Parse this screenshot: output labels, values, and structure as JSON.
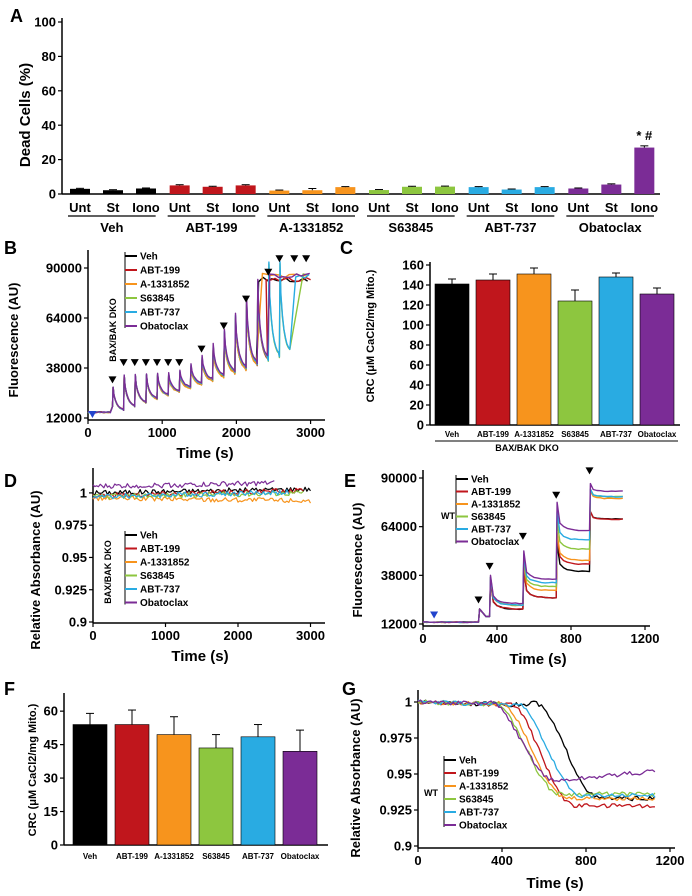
{
  "colors": {
    "veh": "#000000",
    "abt199": "#c0161c",
    "a1331852": "#f7941d",
    "s63845": "#8dc63f",
    "abt737": "#29abe2",
    "obatoclax": "#7b2c96",
    "naveh": "#000000",
    "naabt199": "#8b0000"
  },
  "legend": {
    "names": [
      "Veh",
      "ABT-199",
      "A-1331852",
      "S63845",
      "ABT-737",
      "Obatoclax"
    ],
    "dko_label": "BAX/BAK DKO",
    "wt_label": "WT"
  },
  "chart_data": [
    {
      "panel": "A",
      "type": "bar",
      "ylabel": "Dead Cells (%)",
      "ylim": [
        0,
        100
      ],
      "yticks": [
        "0",
        "20",
        "40",
        "60",
        "80",
        "100"
      ],
      "subcategories": [
        "Unt",
        "St",
        "Iono"
      ],
      "groups": [
        {
          "name": "Veh",
          "values": [
            3.0,
            2.2,
            3.2
          ],
          "errors": [
            0.3,
            0.3,
            0.3
          ]
        },
        {
          "name": "ABT-199",
          "values": [
            5.0,
            4.2,
            5.0
          ],
          "errors": [
            0.4,
            0.3,
            0.4
          ]
        },
        {
          "name": "A-1331852",
          "values": [
            2.0,
            2.2,
            4.0
          ],
          "errors": [
            0.3,
            1.0,
            0.3
          ]
        },
        {
          "name": "S63845",
          "values": [
            2.3,
            4.2,
            4.3
          ],
          "errors": [
            0.3,
            0.3,
            0.3
          ]
        },
        {
          "name": "ABT-737",
          "values": [
            4.0,
            2.6,
            4.0
          ],
          "errors": [
            0.3,
            0.3,
            0.3
          ]
        },
        {
          "name": "Obatoclax",
          "values": [
            3.2,
            5.5,
            27.0
          ],
          "errors": [
            0.3,
            0.4,
            1.0
          ]
        }
      ],
      "annotation": "* #"
    },
    {
      "panel": "B",
      "type": "line",
      "xlabel": "Time (s)",
      "ylabel": "Fluorescence (AU)",
      "xlim": [
        0,
        3100
      ],
      "ylim": [
        12000,
        98000
      ],
      "xticks": [
        "0",
        "1000",
        "2000",
        "3000"
      ],
      "yticks": [
        "12000",
        "38000",
        "64000",
        "90000"
      ]
    },
    {
      "panel": "C",
      "type": "bar",
      "ylabel": "CRC (μM CaCl2/mg Mito.)",
      "xlabel": "BAX/BAK  DKO",
      "ylim": [
        0,
        160
      ],
      "yticks": [
        "0",
        "20",
        "40",
        "60",
        "80",
        "100",
        "120",
        "140",
        "160"
      ],
      "categories": [
        "Veh",
        "ABT-199",
        "A-1331852",
        "S63845",
        "ABT-737",
        "Obatoclax"
      ],
      "values": [
        141,
        145,
        151,
        124,
        148,
        131
      ],
      "errors": [
        5,
        6,
        6,
        11,
        4,
        6
      ]
    },
    {
      "panel": "D",
      "type": "line",
      "xlabel": "Time (s)",
      "ylabel": "Relative Absorbance (AU)",
      "xlim": [
        0,
        3200
      ],
      "ylim": [
        0.9,
        1.015
      ],
      "xticks": [
        "0",
        "1000",
        "2000",
        "3000"
      ],
      "yticks": [
        "0.9",
        "0.925",
        "0.95",
        "0.975",
        "1"
      ]
    },
    {
      "panel": "E",
      "type": "line",
      "xlabel": "Time (s)",
      "ylabel": "Fluorescence (AU)",
      "xlim": [
        0,
        1200
      ],
      "ylim": [
        12000,
        90000
      ],
      "xticks": [
        "0",
        "400",
        "800",
        "1200"
      ],
      "yticks": [
        "12000",
        "38000",
        "64000",
        "90000"
      ]
    },
    {
      "panel": "F",
      "type": "bar",
      "ylabel": "CRC (μM CaCl2/mg Mito.)",
      "ylim": [
        0,
        65
      ],
      "yticks": [
        "0",
        "15",
        "30",
        "45",
        "60"
      ],
      "categories": [
        "Veh",
        "ABT-199",
        "A-1331852",
        "S63845",
        "ABT-737",
        "Obatoclax"
      ],
      "values": [
        54,
        54,
        49.5,
        43.5,
        48.5,
        42
      ],
      "errors": [
        5,
        6.5,
        8,
        6,
        5.5,
        9.5
      ]
    },
    {
      "panel": "G",
      "type": "line",
      "xlabel": "Time (s)",
      "ylabel": "Relative Absorbance (AU)",
      "xlim": [
        0,
        1200
      ],
      "ylim": [
        0.9,
        1.01
      ],
      "xticks": [
        "0",
        "400",
        "800",
        "1200"
      ],
      "yticks": [
        "0.9",
        "0.925",
        "0.95",
        "0.975",
        "1"
      ],
      "series_endpoints": [
        {
          "name": "Veh",
          "drop_start": 540,
          "plateau": 0.933
        },
        {
          "name": "ABT-199",
          "drop_start": 420,
          "plateau": 0.928
        },
        {
          "name": "A-1331852",
          "drop_start": 380,
          "plateau": 0.933
        },
        {
          "name": "S63845",
          "drop_start": 350,
          "plateau": 0.936
        },
        {
          "name": "ABT-737",
          "drop_start": 450,
          "plateau": 0.935
        },
        {
          "name": "Obatoclax",
          "drop_start": 330,
          "plateau": 0.945
        }
      ]
    }
  ],
  "panels": {
    "A": "A",
    "B": "B",
    "C": "C",
    "D": "D",
    "E": "E",
    "F": "F",
    "G": "G"
  }
}
